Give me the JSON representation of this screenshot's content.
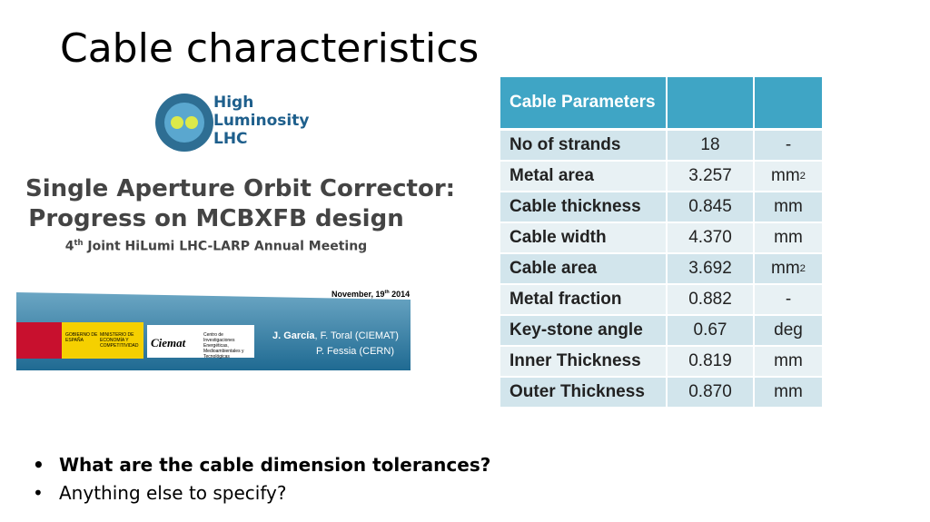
{
  "title": "Cable characteristics",
  "embedded_slide": {
    "logo": [
      "High",
      "Luminosity",
      "LHC"
    ],
    "heading": [
      "Single Aperture Orbit Corrector:",
      "Progress on MCBXFB design"
    ],
    "meeting": {
      "prefix": "4",
      "sup": "th",
      "rest": " Joint HiLumi LHC-LARP Annual Meeting"
    },
    "date": {
      "prefix": "November, 19",
      "sup": "th",
      "rest": " 2014"
    },
    "authors": [
      {
        "name": "J. García",
        "rest": ", F. Toral (CIEMAT)"
      },
      {
        "name": "P. Fessia (CERN)"
      }
    ],
    "sponsors": [
      "GOBIERNO DE ESPAÑA",
      "MINISTERIO DE ECONOMÍA Y COMPETITIVIDAD",
      "Ciemat",
      "Centro de Investigaciones Energéticas, Medioambientales y Tecnológicas"
    ]
  },
  "table": {
    "header": "Cable Parameters",
    "rows": [
      {
        "label": "No of strands",
        "value": "18",
        "unit": "-"
      },
      {
        "label": "Metal area",
        "value": "3.257",
        "unit": "mm",
        "unit_sup": "2"
      },
      {
        "label": "Cable thickness",
        "value": "0.845",
        "unit": "mm"
      },
      {
        "label": "Cable width",
        "value": "4.370",
        "unit": "mm"
      },
      {
        "label": "Cable area",
        "value": "3.692",
        "unit": "mm",
        "unit_sup": "2"
      },
      {
        "label": "Metal fraction",
        "value": "0.882",
        "unit": "-"
      },
      {
        "label": "Key-stone angle",
        "value": "0.67",
        "unit": "deg"
      },
      {
        "label": "Inner Thickness",
        "value": "0.819",
        "unit": "mm"
      },
      {
        "label": "Outer Thickness",
        "value": "0.870",
        "unit": "mm"
      }
    ]
  },
  "bullets": [
    {
      "text": "What are the cable dimension tolerances?",
      "bold": true
    },
    {
      "text": "Anything else to specify?",
      "bold": false
    }
  ]
}
